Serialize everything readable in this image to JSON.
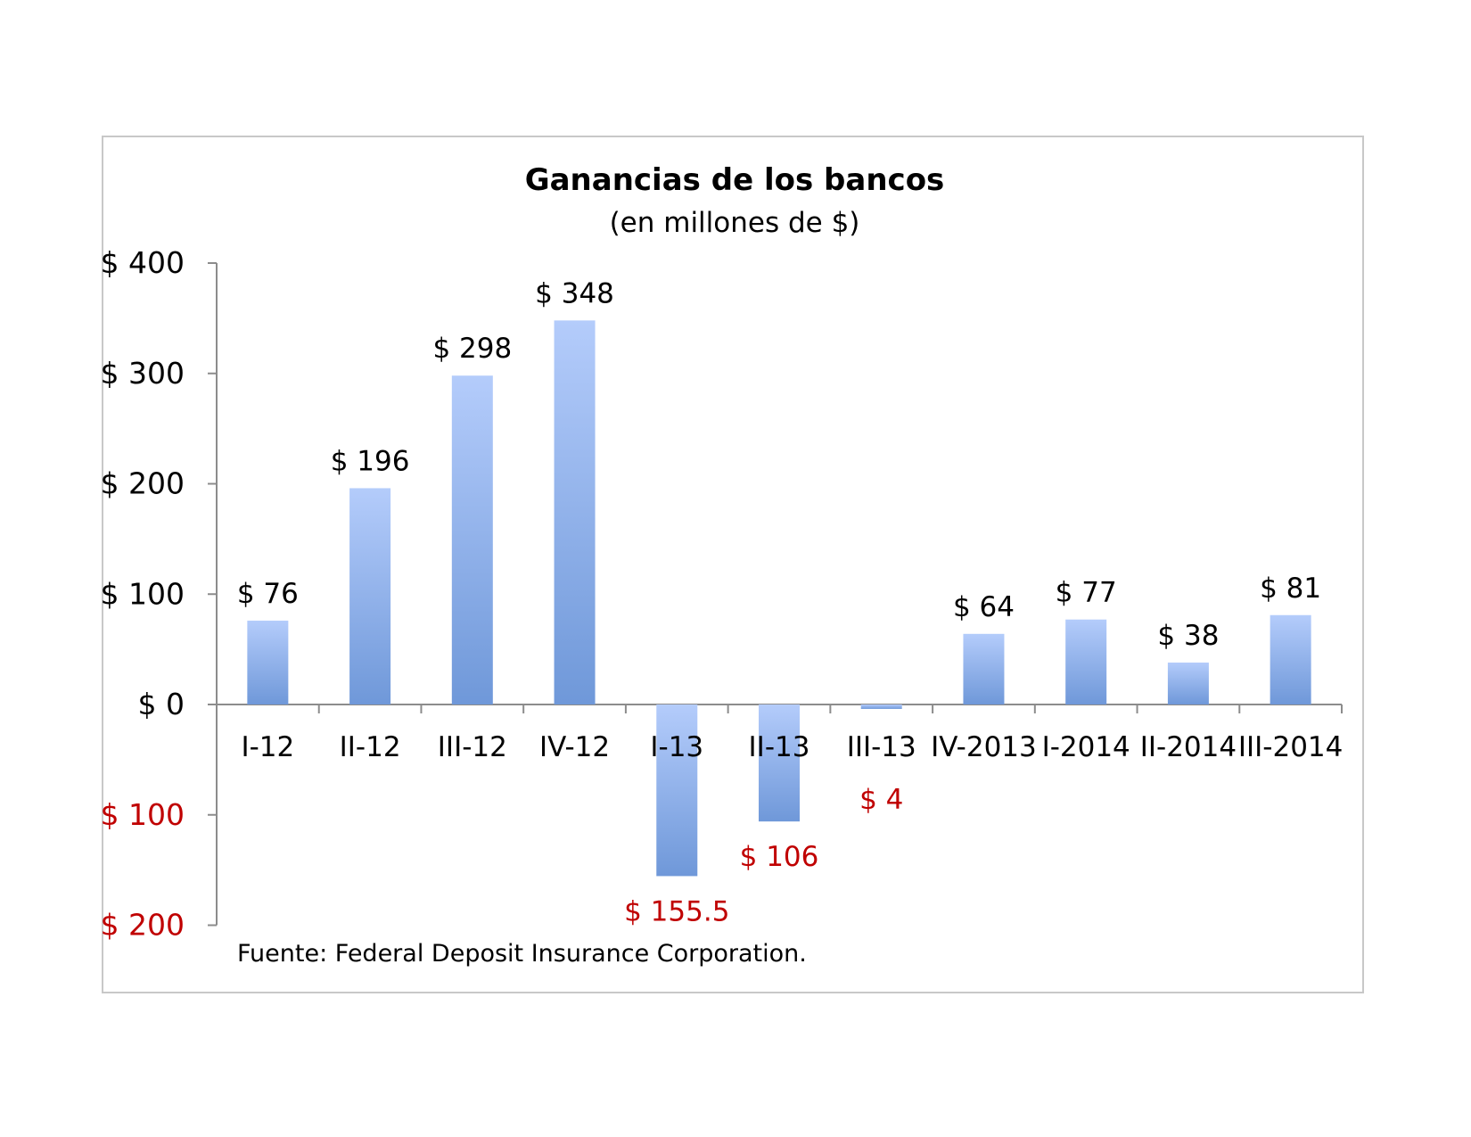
{
  "chart_data": {
    "type": "bar",
    "title": "Ganancias de los bancos",
    "subtitle": "(en millones de $)",
    "categories": [
      "I-12",
      "II-12",
      "III-12",
      "IV-12",
      "I-13",
      "II-13",
      "III-13",
      "IV-2013",
      "I-2014",
      "II-2014",
      "III-2014"
    ],
    "values": [
      76,
      196,
      298,
      348,
      -155.5,
      -106,
      -4,
      64,
      77,
      38,
      81
    ],
    "data_labels": [
      "$ 76",
      "$ 196",
      "$ 298",
      "$ 348",
      "$ 155.5",
      "$ 106",
      "$ 4",
      "$ 64",
      "$ 77",
      "$ 38",
      "$ 81"
    ],
    "y_ticks": [
      {
        "value": 400,
        "label": "$ 400"
      },
      {
        "value": 300,
        "label": "$ 300"
      },
      {
        "value": 200,
        "label": "$ 200"
      },
      {
        "value": 100,
        "label": "$ 100"
      },
      {
        "value": 0,
        "label": "$ 0"
      },
      {
        "value": -100,
        "label": "$ 100"
      },
      {
        "value": -200,
        "label": "$ 200"
      }
    ],
    "ylim": [
      -200,
      400
    ],
    "grid": false,
    "legend": "none",
    "source": "Fuente: Federal Deposit Insurance Corporation.",
    "colors": {
      "bar_top": "#b4ccfb",
      "bar_bottom": "#6f98d9",
      "negative_text": "#c00000",
      "positive_text": "#000000",
      "axis": "#8c8c8c"
    }
  }
}
